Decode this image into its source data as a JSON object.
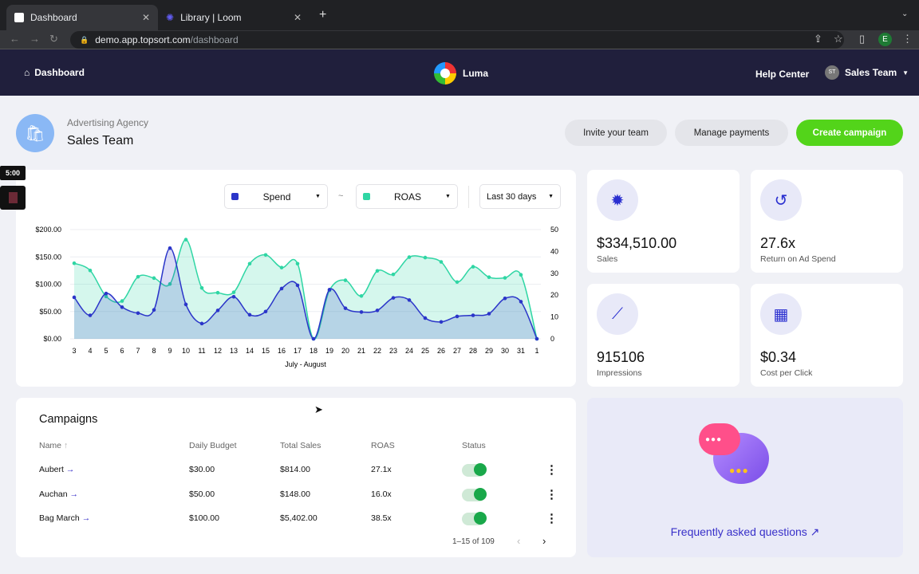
{
  "browser": {
    "tabs": [
      {
        "label": "Dashboard"
      },
      {
        "label": "Library | Loom"
      }
    ],
    "url_host": "demo.app.topsort.com",
    "url_path": "/dashboard",
    "profile": "E"
  },
  "nav": {
    "home": "Dashboard",
    "brand": "Luma",
    "help": "Help Center",
    "avatar": "ST",
    "user": "Sales Team"
  },
  "header": {
    "subtitle": "Advertising Agency",
    "title": "Sales Team",
    "invite": "Invite your team",
    "payments": "Manage payments",
    "create": "Create campaign"
  },
  "recorder": {
    "timer": "5:00"
  },
  "chart_controls": {
    "metric1": "Spend",
    "sep": "~",
    "metric2": "ROAS",
    "range": "Last 30 days"
  },
  "chart_data": {
    "type": "line",
    "xlabel": "July - August",
    "categories": [
      "3",
      "4",
      "5",
      "6",
      "7",
      "8",
      "9",
      "10",
      "11",
      "12",
      "13",
      "14",
      "15",
      "16",
      "17",
      "18",
      "19",
      "20",
      "21",
      "22",
      "23",
      "24",
      "25",
      "26",
      "27",
      "28",
      "29",
      "30",
      "31",
      "1"
    ],
    "left_ticks": [
      "$200.00",
      "$150.00",
      "$100.00",
      "$50.00",
      "$0.00"
    ],
    "right_ticks": [
      "50",
      "40",
      "30",
      "20",
      "10",
      "0"
    ],
    "ylim_left": [
      0,
      200
    ],
    "ylim_right": [
      0,
      50
    ],
    "series": [
      {
        "name": "Spend",
        "axis": "left",
        "color": "#2b35c9",
        "values": [
          76,
          43,
          83,
          58,
          47,
          53,
          166,
          63,
          28,
          52,
          77,
          44,
          50,
          92,
          98,
          0,
          90,
          56,
          49,
          52,
          75,
          71,
          38,
          31,
          41,
          43,
          46,
          74,
          68,
          0
        ]
      },
      {
        "name": "ROAS",
        "axis": "right",
        "color": "#2fd6a4",
        "values": [
          34.6,
          31.3,
          19.4,
          17.3,
          28.4,
          27.8,
          25.1,
          45.4,
          23.3,
          21.1,
          21.3,
          34.4,
          38.4,
          32.6,
          34.4,
          0,
          22.2,
          26.8,
          19.6,
          31.1,
          29.5,
          37.4,
          37.2,
          35.2,
          26,
          33,
          28.2,
          27.9,
          29.3,
          0
        ]
      }
    ]
  },
  "stats": [
    {
      "value": "$334,510.00",
      "label": "Sales",
      "icon": "dollar-badge-icon"
    },
    {
      "value": "27.6x",
      "label": "Return on Ad Spend",
      "icon": "refresh-icon"
    },
    {
      "value": "915106",
      "label": "Impressions",
      "icon": "sparkle-trend-icon"
    },
    {
      "value": "$0.34",
      "label": "Cost per Click",
      "icon": "calculator-icon"
    }
  ],
  "campaigns": {
    "title": "Campaigns",
    "headers": [
      "Name",
      "Daily Budget",
      "Total Sales",
      "ROAS",
      "Status"
    ],
    "rows": [
      {
        "name": "Aubert",
        "budget": "$30.00",
        "sales": "$814.00",
        "roas": "27.1x",
        "active": true
      },
      {
        "name": "Auchan",
        "budget": "$50.00",
        "sales": "$148.00",
        "roas": "16.0x",
        "active": true
      },
      {
        "name": "Bag March",
        "budget": "$100.00",
        "sales": "$5,402.00",
        "roas": "38.5x",
        "active": true
      }
    ],
    "pagination": "1–15 of 109"
  },
  "faq": {
    "label": "Frequently asked questions ↗"
  }
}
